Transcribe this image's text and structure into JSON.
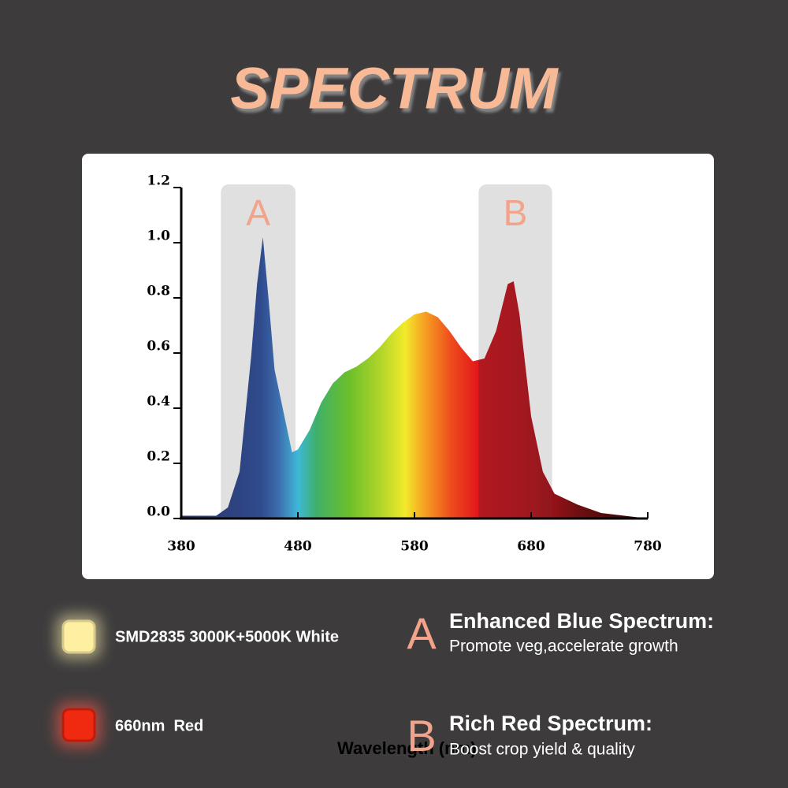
{
  "chart_data": {
    "type": "area",
    "title": "SPECTRUM",
    "xlabel": "Wavelength (nm)",
    "x": [
      380,
      390,
      400,
      410,
      420,
      430,
      440,
      445,
      450,
      455,
      460,
      470,
      475,
      480,
      490,
      500,
      510,
      520,
      530,
      540,
      550,
      560,
      570,
      580,
      590,
      600,
      610,
      620,
      630,
      640,
      650,
      660,
      665,
      670,
      680,
      690,
      700,
      720,
      740,
      760,
      780
    ],
    "values": [
      0.01,
      0.01,
      0.01,
      0.01,
      0.04,
      0.17,
      0.59,
      0.85,
      1.02,
      0.79,
      0.54,
      0.34,
      0.24,
      0.25,
      0.32,
      0.42,
      0.49,
      0.53,
      0.55,
      0.58,
      0.62,
      0.67,
      0.71,
      0.74,
      0.75,
      0.73,
      0.68,
      0.62,
      0.57,
      0.58,
      0.68,
      0.85,
      0.86,
      0.74,
      0.37,
      0.17,
      0.09,
      0.05,
      0.02,
      0.01,
      0
    ],
    "xlim": [
      380,
      780
    ],
    "ylim": [
      0,
      1.2
    ],
    "xticks": [
      380,
      480,
      580,
      680,
      780
    ],
    "yticks": [
      {
        "value": 0,
        "label": "0.0"
      },
      {
        "value": 0.2,
        "label": "0.2"
      },
      {
        "value": 0.4,
        "label": "0.4"
      },
      {
        "value": 0.6,
        "label": "0.6"
      },
      {
        "value": 0.8,
        "label": "0.8"
      },
      {
        "value": 1,
        "label": "1.0"
      },
      {
        "value": 1.2,
        "label": "1.2"
      }
    ],
    "highlights": [
      {
        "label": "A",
        "range": [
          414,
          478
        ],
        "title": "Enhanced Blue Spectrum:",
        "text": "Promote veg,accelerate growth"
      },
      {
        "label": "B",
        "range": [
          635,
          698
        ],
        "title": "Rich Red Spectrum:",
        "text": "Boost crop yield & quality"
      }
    ],
    "leds": [
      "SMD2835 3000K+5000K White",
      "660nm  Red"
    ]
  }
}
